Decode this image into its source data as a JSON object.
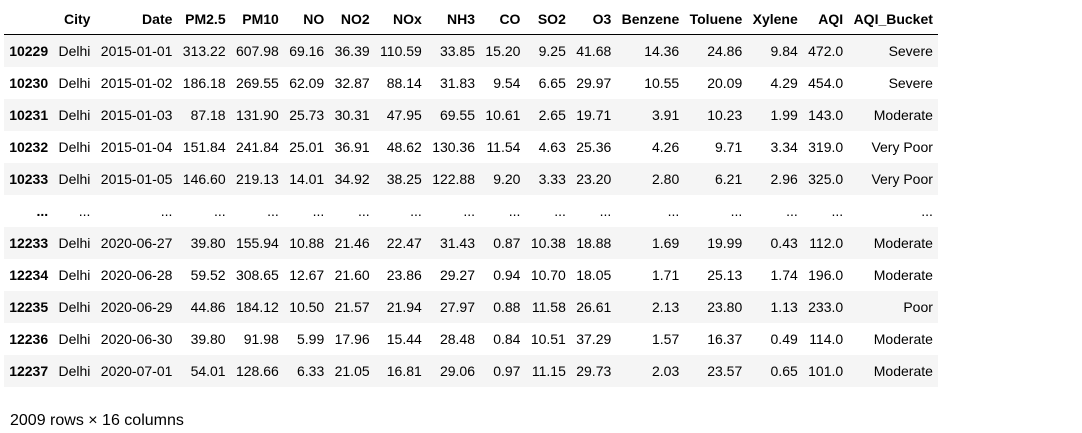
{
  "table": {
    "index_header": "",
    "columns": [
      "City",
      "Date",
      "PM2.5",
      "PM10",
      "NO",
      "NO2",
      "NOx",
      "NH3",
      "CO",
      "SO2",
      "O3",
      "Benzene",
      "Toluene",
      "Xylene",
      "AQI",
      "AQI_Bucket"
    ],
    "rows": [
      {
        "index": "10229",
        "cells": [
          "Delhi",
          "2015-01-01",
          "313.22",
          "607.98",
          "69.16",
          "36.39",
          "110.59",
          "33.85",
          "15.20",
          "9.25",
          "41.68",
          "14.36",
          "24.86",
          "9.84",
          "472.0",
          "Severe"
        ]
      },
      {
        "index": "10230",
        "cells": [
          "Delhi",
          "2015-01-02",
          "186.18",
          "269.55",
          "62.09",
          "32.87",
          "88.14",
          "31.83",
          "9.54",
          "6.65",
          "29.97",
          "10.55",
          "20.09",
          "4.29",
          "454.0",
          "Severe"
        ]
      },
      {
        "index": "10231",
        "cells": [
          "Delhi",
          "2015-01-03",
          "87.18",
          "131.90",
          "25.73",
          "30.31",
          "47.95",
          "69.55",
          "10.61",
          "2.65",
          "19.71",
          "3.91",
          "10.23",
          "1.99",
          "143.0",
          "Moderate"
        ]
      },
      {
        "index": "10232",
        "cells": [
          "Delhi",
          "2015-01-04",
          "151.84",
          "241.84",
          "25.01",
          "36.91",
          "48.62",
          "130.36",
          "11.54",
          "4.63",
          "25.36",
          "4.26",
          "9.71",
          "3.34",
          "319.0",
          "Very Poor"
        ]
      },
      {
        "index": "10233",
        "cells": [
          "Delhi",
          "2015-01-05",
          "146.60",
          "219.13",
          "14.01",
          "34.92",
          "38.25",
          "122.88",
          "9.20",
          "3.33",
          "23.20",
          "2.80",
          "6.21",
          "2.96",
          "325.0",
          "Very Poor"
        ]
      },
      {
        "index": "...",
        "cells": [
          "...",
          "...",
          "...",
          "...",
          "...",
          "...",
          "...",
          "...",
          "...",
          "...",
          "...",
          "...",
          "...",
          "...",
          "...",
          "..."
        ]
      },
      {
        "index": "12233",
        "cells": [
          "Delhi",
          "2020-06-27",
          "39.80",
          "155.94",
          "10.88",
          "21.46",
          "22.47",
          "31.43",
          "0.87",
          "10.38",
          "18.88",
          "1.69",
          "19.99",
          "0.43",
          "112.0",
          "Moderate"
        ]
      },
      {
        "index": "12234",
        "cells": [
          "Delhi",
          "2020-06-28",
          "59.52",
          "308.65",
          "12.67",
          "21.60",
          "23.86",
          "29.27",
          "0.94",
          "10.70",
          "18.05",
          "1.71",
          "25.13",
          "1.74",
          "196.0",
          "Moderate"
        ]
      },
      {
        "index": "12235",
        "cells": [
          "Delhi",
          "2020-06-29",
          "44.86",
          "184.12",
          "10.50",
          "21.57",
          "21.94",
          "27.97",
          "0.88",
          "11.58",
          "26.61",
          "2.13",
          "23.80",
          "1.13",
          "233.0",
          "Poor"
        ]
      },
      {
        "index": "12236",
        "cells": [
          "Delhi",
          "2020-06-30",
          "39.80",
          "91.98",
          "5.99",
          "17.96",
          "15.44",
          "28.48",
          "0.84",
          "10.51",
          "37.29",
          "1.57",
          "16.37",
          "0.49",
          "114.0",
          "Moderate"
        ]
      },
      {
        "index": "12237",
        "cells": [
          "Delhi",
          "2020-07-01",
          "54.01",
          "128.66",
          "6.33",
          "21.05",
          "16.81",
          "29.06",
          "0.97",
          "11.15",
          "29.73",
          "2.03",
          "23.57",
          "0.65",
          "101.0",
          "Moderate"
        ]
      }
    ]
  },
  "footer": {
    "shape_text": "2009 rows × 16 columns"
  },
  "colors": {
    "striped_row": "#f5f5f5",
    "header_rule": "#000000",
    "text": "#000000"
  }
}
